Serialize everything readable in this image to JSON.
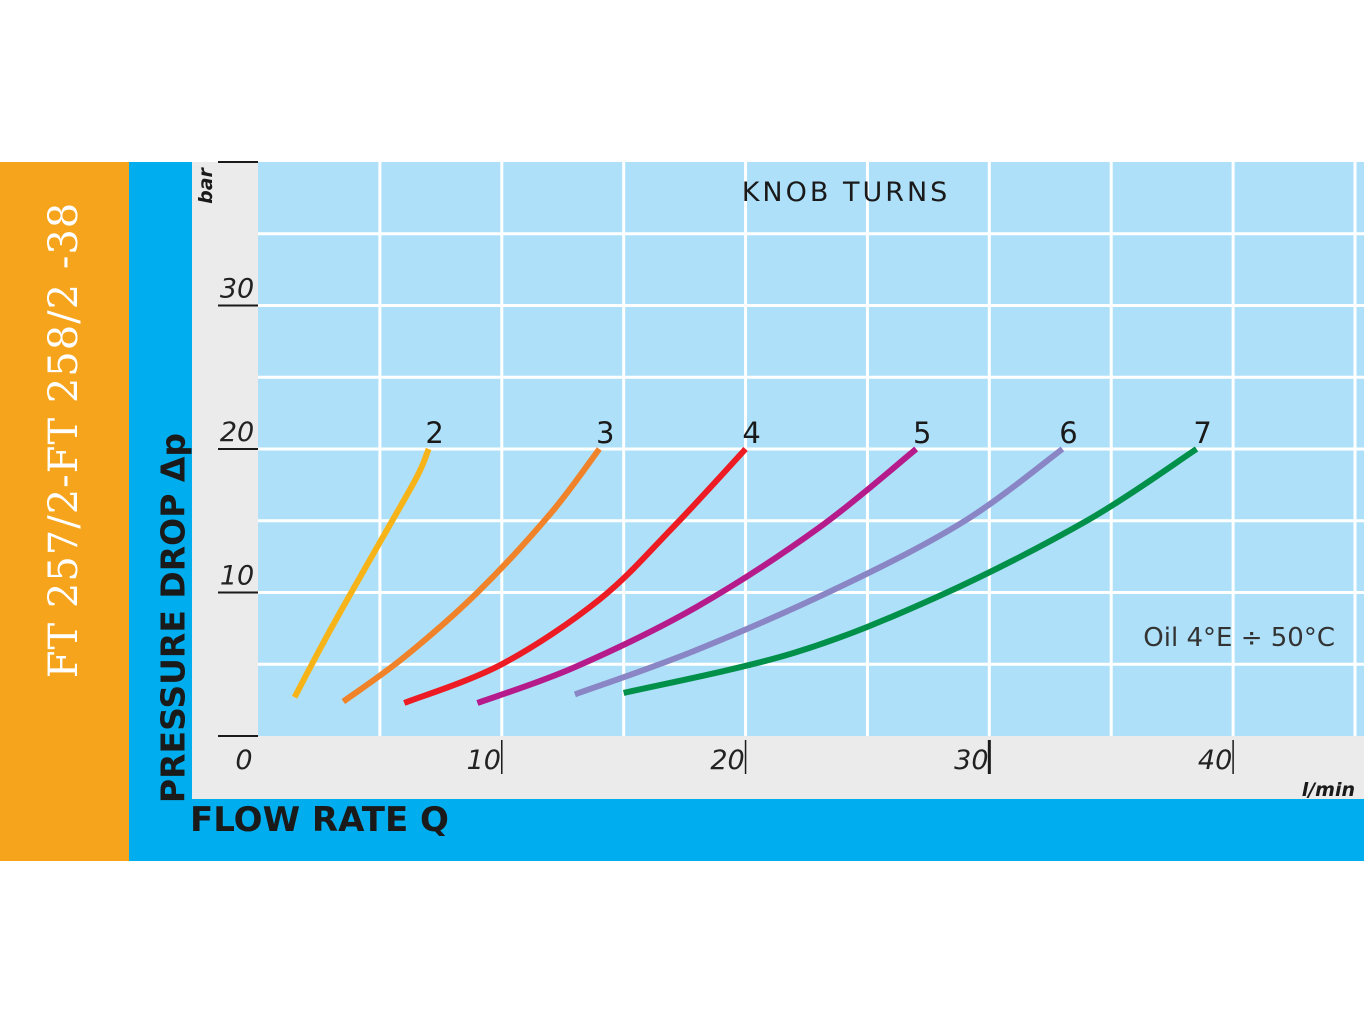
{
  "product_title": "FT 257/2-FT 258/2 -38",
  "chart_data": {
    "type": "line",
    "title": "KNOB TURNS",
    "xlabel": "FLOW RATE Q",
    "ylabel": "PRESSURE DROP Δp",
    "x_unit": "l/min",
    "y_unit": "bar",
    "xlim": [
      0,
      45
    ],
    "ylim": [
      0,
      40
    ],
    "x_ticks": [
      {
        "value": 0,
        "label": "0"
      },
      {
        "value": 10,
        "label": "10"
      },
      {
        "value": 20,
        "label": "20"
      },
      {
        "value": 30,
        "label": "30"
      },
      {
        "value": 40,
        "label": "40"
      }
    ],
    "y_ticks": [
      {
        "value": 10,
        "label": "10"
      },
      {
        "value": 20,
        "label": "20"
      },
      {
        "value": 30,
        "label": "30"
      }
    ],
    "grid": true,
    "grid_x_step": 5,
    "grid_y_step": 5,
    "annotation": "Oil 4°E ÷ 50°C",
    "series": [
      {
        "name": "2",
        "color": "#F7B418",
        "x": [
          1.5,
          3,
          5,
          6.5,
          7
        ],
        "y": [
          2.7,
          7.5,
          13.5,
          18,
          20
        ]
      },
      {
        "name": "3",
        "color": "#F0822A",
        "x": [
          3.5,
          6,
          9,
          12,
          14
        ],
        "y": [
          2.4,
          5.5,
          10,
          15.5,
          20
        ]
      },
      {
        "name": "4",
        "color": "#ED1C24",
        "x": [
          6,
          10,
          14,
          17,
          20
        ],
        "y": [
          2.3,
          5,
          9.5,
          14.5,
          20
        ]
      },
      {
        "name": "5",
        "color": "#B61B8C",
        "x": [
          9,
          13,
          18,
          23,
          27
        ],
        "y": [
          2.3,
          4.8,
          9,
          14.5,
          20
        ]
      },
      {
        "name": "6",
        "color": "#8A86C6",
        "x": [
          13,
          18,
          24,
          29,
          33
        ],
        "y": [
          2.9,
          6,
          10.5,
          15,
          20
        ]
      },
      {
        "name": "7",
        "color": "#00904A",
        "x": [
          15,
          22,
          28,
          34,
          38.5
        ],
        "y": [
          3,
          5.8,
          9.8,
          15,
          20
        ]
      }
    ]
  }
}
